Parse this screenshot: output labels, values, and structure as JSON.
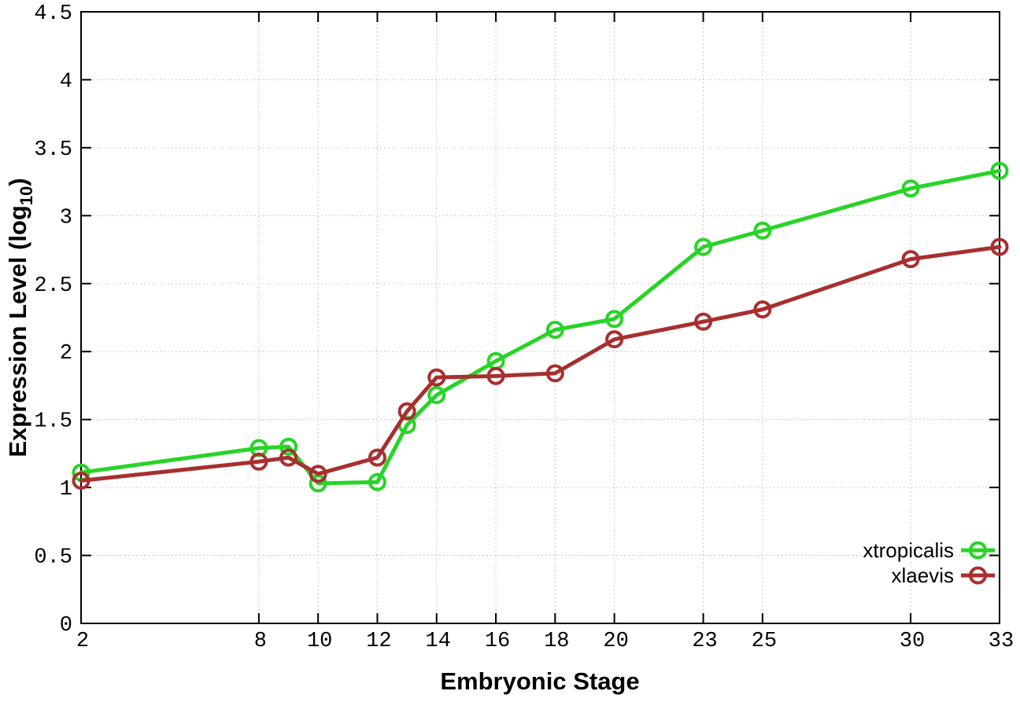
{
  "figure": {
    "background": "#ffffff",
    "border_color": "#000000",
    "grid_color": "#b8b8b8",
    "text_color": "#000000"
  },
  "chart_data": {
    "type": "line",
    "title": "",
    "xlabel": "Embryonic Stage",
    "ylabel": {
      "text": "Expression Level (log",
      "sub": "10",
      "close": ")"
    },
    "xlim": [
      2,
      33
    ],
    "ylim": [
      0,
      4.5
    ],
    "grid": true,
    "grid_style": "dotted",
    "legend_position": "inside-bottom-right",
    "x": [
      2,
      8,
      9,
      10,
      12,
      13,
      14,
      16,
      18,
      20,
      23,
      25,
      30,
      33
    ],
    "xticks": {
      "values": [
        2,
        8,
        10,
        12,
        14,
        16,
        18,
        20,
        23,
        25,
        30,
        33
      ],
      "labels": [
        "2",
        "8",
        "10",
        "12",
        "14",
        "16",
        "18",
        "20",
        "23",
        "25",
        "30",
        "33"
      ]
    },
    "yticks": {
      "values": [
        0,
        0.5,
        1,
        1.5,
        2,
        2.5,
        3,
        3.5,
        4,
        4.5
      ],
      "labels": [
        "0",
        "0.5",
        "1",
        "1.5",
        "2",
        "2.5",
        "3",
        "3.5",
        "4",
        "4.5"
      ]
    },
    "series": [
      {
        "name": "xtropicalis",
        "color": "#27d427",
        "marker": "open-circle",
        "values": [
          1.11,
          1.29,
          1.3,
          1.03,
          1.04,
          1.46,
          1.68,
          1.93,
          2.16,
          2.24,
          2.77,
          2.89,
          3.2,
          3.33
        ]
      },
      {
        "name": "xlaevis",
        "color": "#a82f2f",
        "marker": "open-circle",
        "values": [
          1.05,
          1.19,
          1.22,
          1.1,
          1.22,
          1.56,
          1.81,
          1.82,
          1.84,
          2.09,
          2.22,
          2.31,
          2.68,
          2.77
        ]
      }
    ]
  }
}
